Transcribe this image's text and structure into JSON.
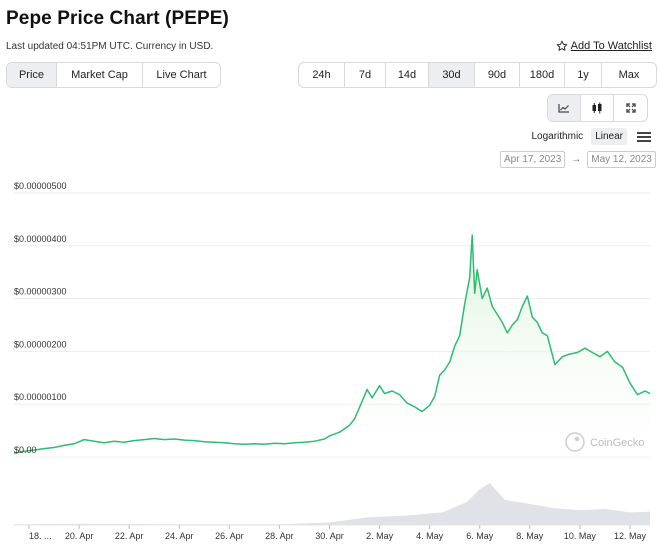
{
  "header": {
    "title": "Pepe Price Chart (PEPE)",
    "subtitle": "Last updated 04:51PM UTC. Currency in USD.",
    "watchlist_label": "Add To Watchlist"
  },
  "view_tabs": [
    {
      "label": "Price",
      "active": true
    },
    {
      "label": "Market Cap",
      "active": false
    },
    {
      "label": "Live Chart",
      "active": false
    }
  ],
  "range_tabs": [
    {
      "label": "24h",
      "active": false
    },
    {
      "label": "7d",
      "active": false
    },
    {
      "label": "14d",
      "active": false
    },
    {
      "label": "30d",
      "active": true
    },
    {
      "label": "90d",
      "active": false
    },
    {
      "label": "180d",
      "active": false
    },
    {
      "label": "1y",
      "active": false
    },
    {
      "label": "Max",
      "active": false
    }
  ],
  "chart_type_icons": [
    "line-chart-icon",
    "candlestick-icon",
    "fullscreen-icon"
  ],
  "scale": {
    "logarithmic": "Logarithmic",
    "linear": "Linear",
    "active": "linear"
  },
  "date_range": {
    "from": "Apr 17, 2023",
    "arrow": "→",
    "to": "May 12, 2023"
  },
  "watermark": "CoinGecko",
  "colors": {
    "line": "#2dbd71",
    "area_top": "#d9f2d6",
    "volume": "#dfe2e6",
    "grid": "#ededed",
    "active_button": "#eceef1"
  },
  "chart_data": {
    "type": "line",
    "title": "",
    "ylabel": "",
    "ylim": [
      0,
      5e-06
    ],
    "y_ticks": [
      "$0.00",
      "$0.00000100",
      "$0.00000200",
      "$0.00000300",
      "$0.00000400",
      "$0.00000500"
    ],
    "y_tick_values": [
      0,
      1e-06,
      2e-06,
      3e-06,
      4e-06,
      5e-06
    ],
    "x_ticks": [
      "18. ...",
      "20. Apr",
      "22. Apr",
      "24. Apr",
      "26. Apr",
      "28. Apr",
      "30. Apr",
      "2. May",
      "4. May",
      "6. May",
      "8. May",
      "10. May",
      "12. May"
    ],
    "x_tick_days": [
      18,
      20,
      22,
      24,
      26,
      28,
      30,
      32,
      34,
      36,
      38,
      40,
      42
    ],
    "xlim_days": [
      17.4,
      42.8
    ],
    "series": [
      {
        "points": [
          [
            17.4,
            7e-08
          ],
          [
            17.8,
            1.1e-07
          ],
          [
            18.2,
            1.3e-07
          ],
          [
            18.6,
            1.6e-07
          ],
          [
            19.0,
            1.8e-07
          ],
          [
            19.4,
            2.2e-07
          ],
          [
            19.8,
            2.5e-07
          ],
          [
            20.2,
            3.3e-07
          ],
          [
            20.6,
            3e-07
          ],
          [
            21.0,
            2.7e-07
          ],
          [
            21.4,
            3e-07
          ],
          [
            21.8,
            2.8e-07
          ],
          [
            22.2,
            3.1e-07
          ],
          [
            22.6,
            3.3e-07
          ],
          [
            23.0,
            3.5e-07
          ],
          [
            23.4,
            3.3e-07
          ],
          [
            23.8,
            3.4e-07
          ],
          [
            24.2,
            3.2e-07
          ],
          [
            24.6,
            3.1e-07
          ],
          [
            25.0,
            2.9e-07
          ],
          [
            25.4,
            2.8e-07
          ],
          [
            25.8,
            2.7e-07
          ],
          [
            26.2,
            2.5e-07
          ],
          [
            26.6,
            2.4e-07
          ],
          [
            27.0,
            2.5e-07
          ],
          [
            27.4,
            2.4e-07
          ],
          [
            27.8,
            2.6e-07
          ],
          [
            28.2,
            2.5e-07
          ],
          [
            28.6,
            2.7e-07
          ],
          [
            29.0,
            2.8e-07
          ],
          [
            29.4,
            3e-07
          ],
          [
            29.8,
            3.4e-07
          ],
          [
            30.0,
            4e-07
          ],
          [
            30.4,
            4.7e-07
          ],
          [
            30.8,
            6e-07
          ],
          [
            31.0,
            7.2e-07
          ],
          [
            31.3,
            1.05e-06
          ],
          [
            31.5,
            1.28e-06
          ],
          [
            31.7,
            1.12e-06
          ],
          [
            32.0,
            1.35e-06
          ],
          [
            32.2,
            1.2e-06
          ],
          [
            32.5,
            1.25e-06
          ],
          [
            32.8,
            1.18e-06
          ],
          [
            33.1,
            1.02e-06
          ],
          [
            33.4,
            9.5e-07
          ],
          [
            33.7,
            8.6e-07
          ],
          [
            34.0,
            9.8e-07
          ],
          [
            34.2,
            1.15e-06
          ],
          [
            34.4,
            1.55e-06
          ],
          [
            34.6,
            1.65e-06
          ],
          [
            34.8,
            1.8e-06
          ],
          [
            35.0,
            2.1e-06
          ],
          [
            35.2,
            2.3e-06
          ],
          [
            35.4,
            2.9e-06
          ],
          [
            35.6,
            3.4e-06
          ],
          [
            35.7,
            4.2e-06
          ],
          [
            35.8,
            3.1e-06
          ],
          [
            35.9,
            3.55e-06
          ],
          [
            36.1,
            3e-06
          ],
          [
            36.3,
            3.2e-06
          ],
          [
            36.5,
            2.85e-06
          ],
          [
            36.7,
            2.7e-06
          ],
          [
            36.9,
            2.55e-06
          ],
          [
            37.1,
            2.35e-06
          ],
          [
            37.3,
            2.5e-06
          ],
          [
            37.5,
            2.6e-06
          ],
          [
            37.7,
            2.85e-06
          ],
          [
            37.9,
            3.05e-06
          ],
          [
            38.1,
            2.65e-06
          ],
          [
            38.3,
            2.55e-06
          ],
          [
            38.5,
            2.35e-06
          ],
          [
            38.7,
            2.3e-06
          ],
          [
            39.0,
            1.75e-06
          ],
          [
            39.3,
            1.9e-06
          ],
          [
            39.6,
            1.95e-06
          ],
          [
            39.9,
            1.98e-06
          ],
          [
            40.2,
            2.06e-06
          ],
          [
            40.5,
            1.98e-06
          ],
          [
            40.8,
            1.9e-06
          ],
          [
            41.1,
            2e-06
          ],
          [
            41.4,
            1.8e-06
          ],
          [
            41.7,
            1.7e-06
          ],
          [
            42.0,
            1.4e-06
          ],
          [
            42.3,
            1.18e-06
          ],
          [
            42.6,
            1.25e-06
          ],
          [
            42.8,
            1.2e-06
          ]
        ]
      }
    ],
    "volume": {
      "points": [
        [
          17.4,
          0.02
        ],
        [
          20,
          0.03
        ],
        [
          24,
          0.02
        ],
        [
          28,
          0.02
        ],
        [
          30,
          0.06
        ],
        [
          31.5,
          0.18
        ],
        [
          33,
          0.22
        ],
        [
          34.5,
          0.3
        ],
        [
          35.5,
          0.55
        ],
        [
          36.0,
          0.85
        ],
        [
          36.4,
          1.0
        ],
        [
          37.0,
          0.6
        ],
        [
          38.0,
          0.5
        ],
        [
          39.0,
          0.4
        ],
        [
          40.0,
          0.35
        ],
        [
          41.0,
          0.38
        ],
        [
          42.0,
          0.3
        ],
        [
          42.8,
          0.32
        ]
      ]
    },
    "grid": true,
    "legend": "none"
  }
}
